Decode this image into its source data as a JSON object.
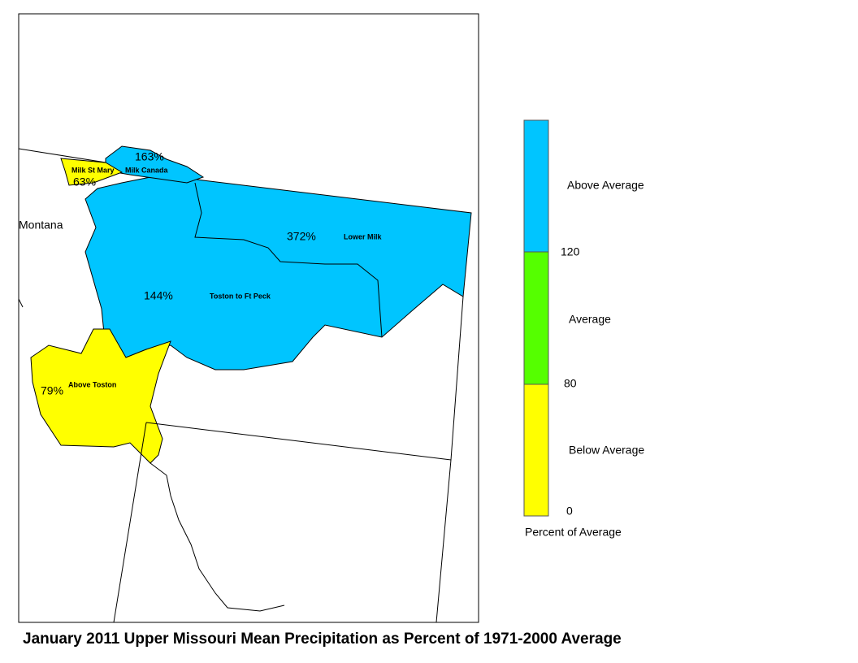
{
  "title": "January 2011 Upper Missouri Mean Precipitation as Percent of 1971-2000 Average",
  "map": {
    "state_label": "Montana",
    "regions": [
      {
        "name": "Lower Milk",
        "value_label": "372%",
        "color": "#00c5ff"
      },
      {
        "name": "Toston to Ft Peck",
        "value_label": "144%",
        "color": "#00c5ff"
      },
      {
        "name": "Milk Canada",
        "value_label": "163%",
        "color": "#00c5ff"
      },
      {
        "name": "Milk St Mary",
        "value_label": "63%",
        "color": "#ffff00"
      },
      {
        "name": "Above Toston",
        "value_label": "79%",
        "color": "#ffff00"
      }
    ]
  },
  "legend": {
    "title": "Percent of Average",
    "classes": [
      {
        "label": "Above Average",
        "color": "#00c5ff"
      },
      {
        "label": "Average",
        "color": "#55ff00"
      },
      {
        "label": "Below Average",
        "color": "#ffff00"
      }
    ],
    "breaks": [
      120,
      80,
      0
    ]
  }
}
